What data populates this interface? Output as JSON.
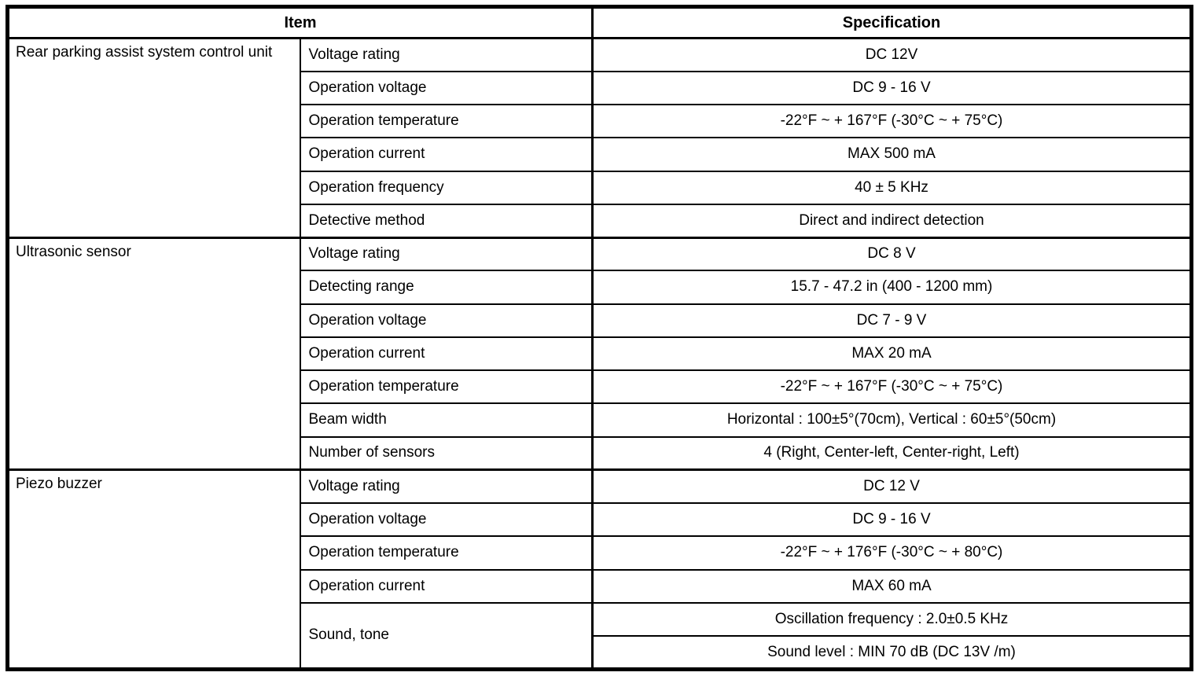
{
  "header": {
    "item": "Item",
    "specification": "Specification"
  },
  "groups": [
    {
      "name": "Rear parking assist system control unit",
      "rows": [
        {
          "label": "Voltage rating",
          "spec": "DC 12V"
        },
        {
          "label": "Operation voltage",
          "spec": "DC 9 - 16 V"
        },
        {
          "label": "Operation temperature",
          "spec": "-22°F ~ + 167°F (-30°C ~ + 75°C)"
        },
        {
          "label": "Operation current",
          "spec": "MAX 500 mA"
        },
        {
          "label": "Operation frequency",
          "spec": "40 ± 5 KHz"
        },
        {
          "label": "Detective method",
          "spec": "Direct and indirect detection"
        }
      ]
    },
    {
      "name": "Ultrasonic sensor",
      "rows": [
        {
          "label": "Voltage rating",
          "spec": "DC 8 V"
        },
        {
          "label": "Detecting range",
          "spec": "15.7 - 47.2 in (400 - 1200 mm)"
        },
        {
          "label": "Operation voltage",
          "spec": "DC 7 - 9 V"
        },
        {
          "label": "Operation current",
          "spec": "MAX 20 mA"
        },
        {
          "label": "Operation temperature",
          "spec": "-22°F ~ + 167°F (-30°C ~ + 75°C)"
        },
        {
          "label": "Beam width",
          "spec": "Horizontal : 100±5°(70cm), Vertical : 60±5°(50cm)"
        },
        {
          "label": "Number of sensors",
          "spec": "4 (Right, Center-left, Center-right, Left)"
        }
      ]
    },
    {
      "name": "Piezo buzzer",
      "rows": [
        {
          "label": "Voltage rating",
          "spec": "DC 12 V"
        },
        {
          "label": "Operation voltage",
          "spec": "DC 9 - 16 V"
        },
        {
          "label": "Operation temperature",
          "spec": "-22°F ~ + 176°F (-30°C ~ + 80°C)"
        },
        {
          "label": "Operation current",
          "spec": "MAX 60 mA"
        },
        {
          "label": "Sound, tone",
          "specs": [
            "Oscillation frequency : 2.0±0.5 KHz",
            "Sound level : MIN 70 dB (DC 13V /m)"
          ]
        }
      ]
    }
  ]
}
